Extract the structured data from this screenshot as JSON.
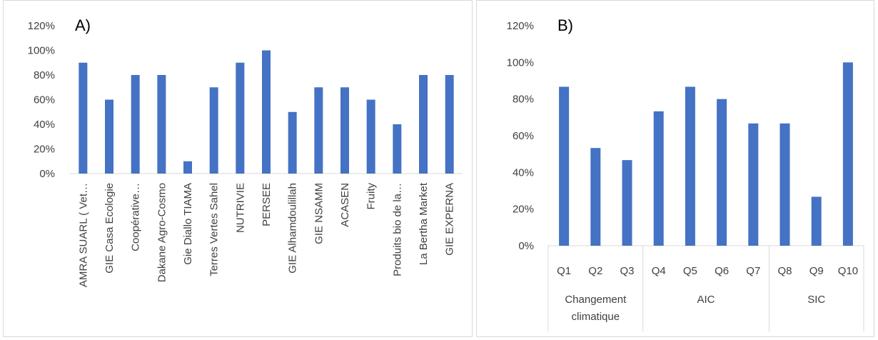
{
  "chart_data": [
    {
      "id": "A",
      "type": "bar",
      "panel_label": "A)",
      "categories": [
        "AMRA SUARL ( Vet…",
        "GIE Casa Ecologie",
        "Coopérative…",
        "Dakane Agro-Cosmo",
        "Gie Diallo TIAMA",
        "Terres Vertes Sahel",
        "NUTRIVIE",
        "PERSEE",
        "GIE Alhamdoulillah",
        "GIE NSAMM",
        "ACASEN",
        "Fruity",
        "Produits bio de la…",
        "La Bertha Market",
        "GIE EXPERNA"
      ],
      "values": [
        90,
        60,
        80,
        80,
        10,
        70,
        90,
        100,
        50,
        70,
        70,
        60,
        40,
        80,
        80
      ],
      "ylim": [
        0,
        120
      ],
      "yticks": [
        "0%",
        "20%",
        "40%",
        "60%",
        "80%",
        "100%",
        "120%"
      ],
      "bar_color": "#4472c4",
      "grid": false
    },
    {
      "id": "B",
      "type": "bar",
      "panel_label": "B)",
      "categories": [
        "Q1",
        "Q2",
        "Q3",
        "Q4",
        "Q5",
        "Q6",
        "Q7",
        "Q8",
        "Q9",
        "Q10"
      ],
      "groups": [
        {
          "label_lines": [
            "Changement",
            "climatique"
          ],
          "size": 3
        },
        {
          "label_lines": [
            "AIC"
          ],
          "size": 4
        },
        {
          "label_lines": [
            "SIC"
          ],
          "size": 3
        }
      ],
      "values": [
        86.7,
        53.3,
        46.7,
        73.3,
        86.7,
        80,
        66.7,
        66.7,
        26.7,
        100
      ],
      "ylim": [
        0,
        120
      ],
      "yticks": [
        "0%",
        "20%",
        "40%",
        "60%",
        "80%",
        "100%",
        "120%"
      ],
      "bar_color": "#4472c4",
      "grid": false
    }
  ]
}
